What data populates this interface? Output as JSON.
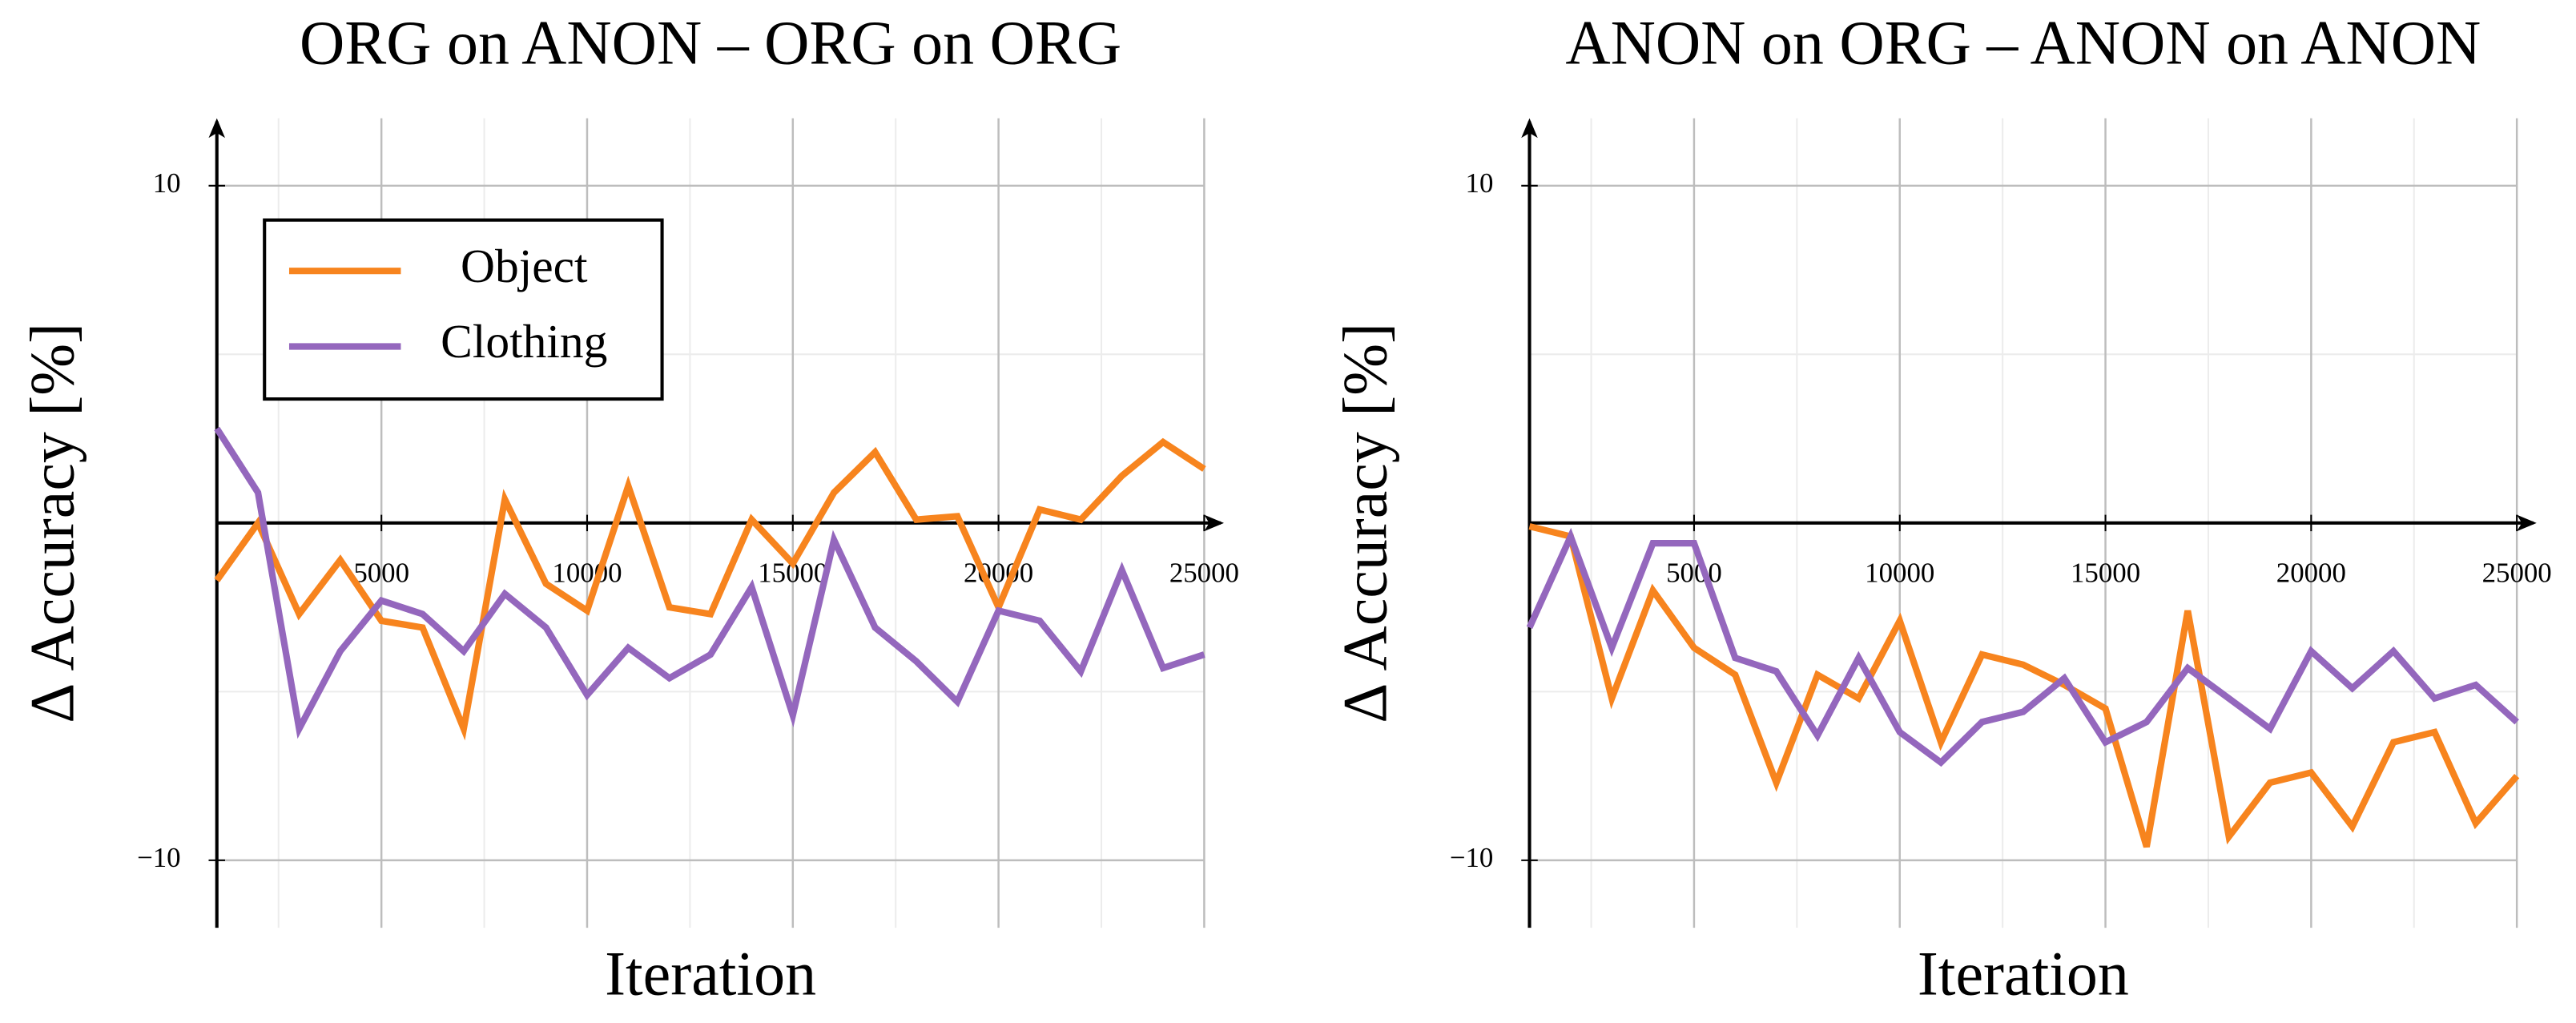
{
  "chart_data": [
    {
      "type": "line",
      "title": "ORG on ANON – ORG on ORG",
      "xlabel": "Iteration",
      "ylabel": "Δ Accuracy [%]",
      "x": [
        1000,
        2000,
        3000,
        4000,
        5000,
        6000,
        7000,
        8000,
        9000,
        10000,
        11000,
        12000,
        13000,
        14000,
        15000,
        16000,
        17000,
        18000,
        19000,
        20000,
        21000,
        22000,
        23000,
        24000,
        25000
      ],
      "series": [
        {
          "name": "Object",
          "color": "#f7841e",
          "values": [
            -1.7,
            0,
            -2.7,
            -1.1,
            -2.9,
            -3.1,
            -6.1,
            0.7,
            -1.8,
            -2.6,
            1.1,
            -2.5,
            -2.7,
            0.1,
            -1.2,
            0.9,
            2.1,
            0.1,
            0.2,
            -2.5,
            0.4,
            0.1,
            1.4,
            2.4,
            1.6
          ]
        },
        {
          "name": "Clothing",
          "color": "#9467bd",
          "values": [
            2.8,
            0.9,
            -6.1,
            -3.8,
            -2.3,
            -2.7,
            -3.8,
            -2.1,
            -3.1,
            -5.1,
            -3.7,
            -4.6,
            -3.9,
            -1.9,
            -5.7,
            -0.5,
            -3.1,
            -4.1,
            -5.3,
            -2.6,
            -2.9,
            -4.4,
            -1.4,
            -4.3,
            -3.9
          ]
        }
      ],
      "xlim": [
        1000,
        25000
      ],
      "ylim": [
        -12,
        12
      ],
      "xticks": [
        5000,
        10000,
        15000,
        20000,
        25000
      ],
      "xticks_minor": [
        2500,
        7500,
        12500,
        17500,
        22500
      ],
      "yticks": [
        {
          "value": -10,
          "label": "−10"
        },
        10
      ],
      "yticks_minor": [
        -5,
        0,
        5
      ],
      "grid": true,
      "legend": "upper left"
    },
    {
      "type": "line",
      "title": "ANON on ORG – ANON on ANON",
      "xlabel": "Iteration",
      "ylabel": "Δ Accuracy [%]",
      "x": [
        1000,
        2000,
        3000,
        4000,
        5000,
        6000,
        7000,
        8000,
        9000,
        10000,
        11000,
        12000,
        13000,
        14000,
        15000,
        16000,
        17000,
        18000,
        19000,
        20000,
        21000,
        22000,
        23000,
        24000,
        25000
      ],
      "series": [
        {
          "name": "Object",
          "color": "#f7841e",
          "values": [
            -0.1,
            -0.4,
            -5.2,
            -2.0,
            -3.7,
            -4.5,
            -7.7,
            -4.5,
            -5.2,
            -2.9,
            -6.5,
            -3.9,
            -4.2,
            -4.8,
            -5.5,
            -9.6,
            -2.6,
            -9.3,
            -7.7,
            -7.4,
            -9.0,
            -6.5,
            -6.2,
            -8.9,
            -7.5
          ]
        },
        {
          "name": "Clothing",
          "color": "#9467bd",
          "values": [
            -3.1,
            -0.4,
            -3.7,
            -0.6,
            -0.6,
            -4.0,
            -4.4,
            -6.3,
            -4.0,
            -6.2,
            -7.1,
            -5.9,
            -5.6,
            -4.6,
            -6.5,
            -5.9,
            -4.3,
            -5.2,
            -6.1,
            -3.8,
            -4.9,
            -3.8,
            -5.2,
            -4.8,
            -5.9
          ]
        }
      ],
      "xlim": [
        1000,
        25000
      ],
      "ylim": [
        -12,
        12
      ],
      "xticks": [
        5000,
        10000,
        15000,
        20000,
        25000
      ],
      "xticks_minor": [
        2500,
        7500,
        12500,
        17500,
        22500
      ],
      "yticks": [
        {
          "value": -10,
          "label": "−10"
        },
        10
      ],
      "yticks_minor": [
        -5,
        0,
        5
      ],
      "grid": true
    }
  ]
}
